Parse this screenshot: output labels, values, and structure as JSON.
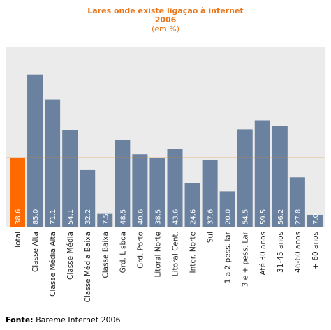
{
  "chart_data": {
    "type": "bar",
    "title": "Lares onde existe ligação à internet",
    "title_year": "2006",
    "subtitle": "(em %)",
    "categories": [
      "Total",
      "Classe Alta",
      "Classe Média Alta",
      "Classe Média",
      "Classe Média Baixa",
      "Classe Baixa",
      "Grd. Lisboa",
      "Grd. Porto",
      "Litoral Norte",
      "Litoral Cent.",
      "Inter. Norte",
      "Sul",
      "1 a 2 pess. lar",
      "3 e + pess. Lar",
      "Até 30 anos",
      "31-45 anos",
      "46-60 anos",
      "+ 60 anos"
    ],
    "values": [
      38.6,
      85.0,
      71.1,
      54.1,
      32.2,
      7.5,
      48.5,
      40.6,
      38.5,
      43.6,
      24.6,
      37.6,
      20.0,
      54.5,
      59.5,
      56.2,
      27.8,
      7.0
    ],
    "value_labels": [
      "38.6",
      "85.0",
      "71.1",
      "54.1",
      "32.2",
      "7.5",
      "48.5",
      "40.6",
      "38.5",
      "43.6",
      "24.6",
      "37.6",
      "20.0",
      "54.5",
      "59.5",
      "56.2",
      "27.8",
      "7.0"
    ],
    "highlight_index": 0,
    "reference_line": 38.6,
    "ylim": [
      0,
      100
    ],
    "colors": {
      "bar": "#6a81a0",
      "highlight": "#ff6a00",
      "reference_line": "#e08a1e",
      "plot_bg": "#ebebeb",
      "title": "#e8761c"
    }
  },
  "source": {
    "label": "Fonte:",
    "text": " Bareme Internet 2006"
  }
}
